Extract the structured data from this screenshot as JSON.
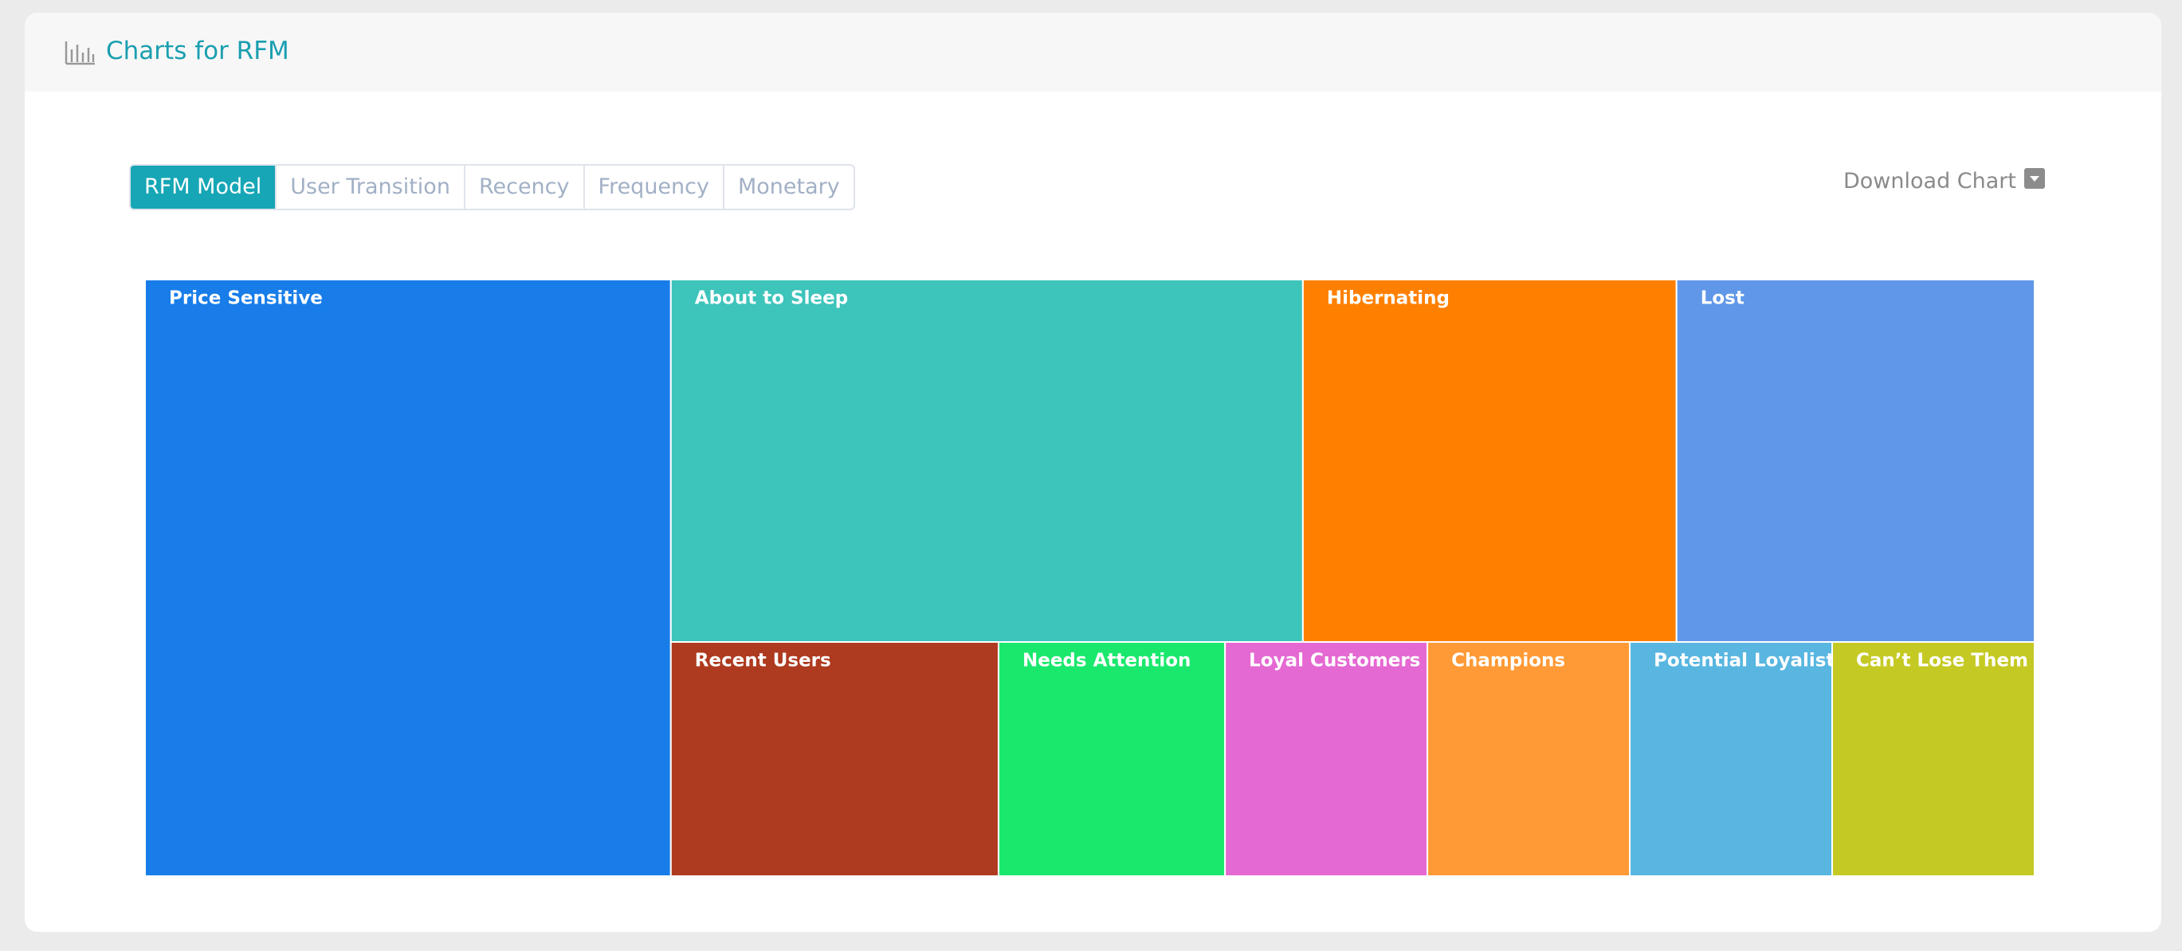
{
  "header": {
    "title": "Charts for RFM"
  },
  "tabs": [
    "RFM Model",
    "User Transition",
    "Recency",
    "Frequency",
    "Monetary"
  ],
  "active_tab": 0,
  "download": "Download Chart",
  "chart_data": {
    "type": "treemap",
    "categories": [
      "Price Sensitive",
      "About to Sleep",
      "Hibernating",
      "Lost",
      "Recent Users",
      "Needs Attention",
      "Loyal Customers",
      "Champions",
      "Potential Loyalist",
      "Can’t Lose Them"
    ],
    "values": [
      27.8,
      20.3,
      12.0,
      11.5,
      6.8,
      4.7,
      4.2,
      4.2,
      4.2,
      4.2
    ],
    "colors": [
      "#187de9",
      "#3dc4bb",
      "#ff8000",
      "#6097e8",
      "#ae3a1f",
      "#1ae86d",
      "#e569d2",
      "#ff9a36",
      "#58b6e0",
      "#c5c923"
    ]
  }
}
